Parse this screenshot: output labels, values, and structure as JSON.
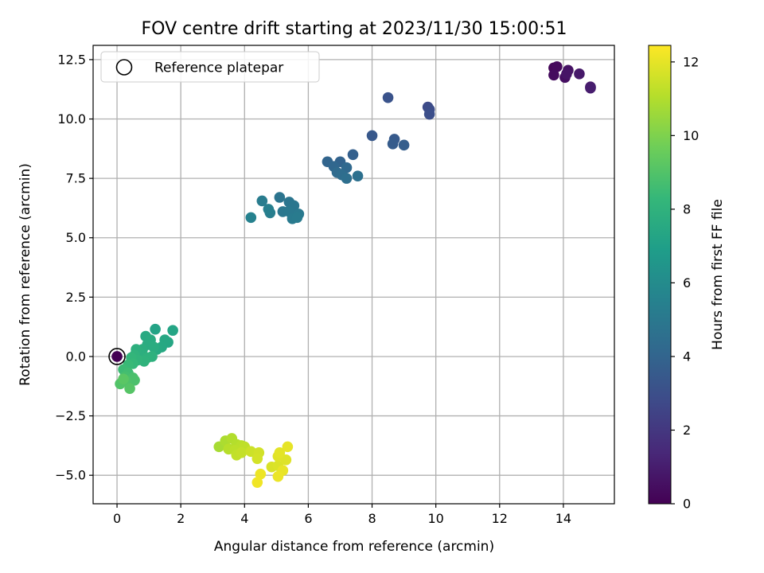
{
  "chart_data": {
    "type": "scatter",
    "title": "FOV centre drift starting at 2023/11/30 15:00:51",
    "xlabel": "Angular distance from reference (arcmin)",
    "ylabel": "Rotation from reference (arcmin)",
    "xlim": [
      -0.75,
      15.6
    ],
    "ylim": [
      -6.2,
      13.1
    ],
    "xticks": [
      "0",
      "2",
      "4",
      "6",
      "8",
      "10",
      "12",
      "14"
    ],
    "yticks": [
      "−5.0",
      "−2.5",
      "0.0",
      "2.5",
      "5.0",
      "7.5",
      "10.0",
      "12.5"
    ],
    "grid": true,
    "legend": {
      "placement": "top-left",
      "label": "Reference platepar"
    },
    "reference_point": {
      "x": 0,
      "y": 0
    },
    "colorbar": {
      "label": "Hours from first FF file",
      "colormap": "viridis",
      "range": [
        0,
        12.45
      ],
      "ticks": [
        "0",
        "2",
        "4",
        "6",
        "8",
        "10",
        "12"
      ]
    },
    "colormap_stops": [
      "#440154",
      "#482878",
      "#3e4a89",
      "#31688e",
      "#26828e",
      "#1f9e89",
      "#35b779",
      "#6ece58",
      "#b5de2b",
      "#fde725"
    ],
    "points": [
      {
        "x": 13.7,
        "y": 12.15,
        "h": 0.2
      },
      {
        "x": 13.8,
        "y": 12.2,
        "h": 0.3
      },
      {
        "x": 13.7,
        "y": 11.85,
        "h": 0.4
      },
      {
        "x": 14.05,
        "y": 11.75,
        "h": 0.5
      },
      {
        "x": 14.15,
        "y": 12.05,
        "h": 0.6
      },
      {
        "x": 14.1,
        "y": 11.9,
        "h": 0.7
      },
      {
        "x": 14.5,
        "y": 11.9,
        "h": 0.8
      },
      {
        "x": 14.85,
        "y": 11.35,
        "h": 0.9
      },
      {
        "x": 14.85,
        "y": 11.3,
        "h": 1.0
      },
      {
        "x": 9.75,
        "y": 10.5,
        "h": 2.8
      },
      {
        "x": 9.8,
        "y": 10.4,
        "h": 2.9
      },
      {
        "x": 9.8,
        "y": 10.2,
        "h": 3.0
      },
      {
        "x": 8.5,
        "y": 10.9,
        "h": 3.2
      },
      {
        "x": 8.0,
        "y": 9.3,
        "h": 3.4
      },
      {
        "x": 8.7,
        "y": 9.15,
        "h": 3.5
      },
      {
        "x": 8.65,
        "y": 8.95,
        "h": 3.6
      },
      {
        "x": 9.0,
        "y": 8.9,
        "h": 3.7
      },
      {
        "x": 7.4,
        "y": 8.5,
        "h": 3.8
      },
      {
        "x": 7.0,
        "y": 8.2,
        "h": 3.9
      },
      {
        "x": 6.6,
        "y": 8.2,
        "h": 4.0
      },
      {
        "x": 6.8,
        "y": 8.0,
        "h": 4.1
      },
      {
        "x": 7.2,
        "y": 7.95,
        "h": 4.2
      },
      {
        "x": 6.9,
        "y": 7.75,
        "h": 4.3
      },
      {
        "x": 7.05,
        "y": 7.65,
        "h": 4.4
      },
      {
        "x": 7.2,
        "y": 7.5,
        "h": 4.5
      },
      {
        "x": 7.55,
        "y": 7.6,
        "h": 4.6
      },
      {
        "x": 5.45,
        "y": 6.2,
        "h": 4.7
      },
      {
        "x": 5.1,
        "y": 6.7,
        "h": 4.8
      },
      {
        "x": 5.4,
        "y": 6.5,
        "h": 4.85
      },
      {
        "x": 5.55,
        "y": 6.35,
        "h": 4.9
      },
      {
        "x": 5.2,
        "y": 6.1,
        "h": 4.95
      },
      {
        "x": 5.4,
        "y": 6.1,
        "h": 5.0
      },
      {
        "x": 5.7,
        "y": 6.0,
        "h": 5.05
      },
      {
        "x": 5.5,
        "y": 5.8,
        "h": 5.1
      },
      {
        "x": 5.65,
        "y": 5.85,
        "h": 5.15
      },
      {
        "x": 4.55,
        "y": 6.55,
        "h": 5.2
      },
      {
        "x": 4.8,
        "y": 6.05,
        "h": 5.3
      },
      {
        "x": 4.75,
        "y": 6.2,
        "h": 5.35
      },
      {
        "x": 4.2,
        "y": 5.85,
        "h": 5.5
      },
      {
        "x": 1.2,
        "y": 1.15,
        "h": 7.2
      },
      {
        "x": 1.75,
        "y": 1.1,
        "h": 7.3
      },
      {
        "x": 1.6,
        "y": 0.6,
        "h": 7.35
      },
      {
        "x": 1.5,
        "y": 0.7,
        "h": 7.4
      },
      {
        "x": 1.4,
        "y": 0.4,
        "h": 7.45
      },
      {
        "x": 1.25,
        "y": 0.3,
        "h": 7.5
      },
      {
        "x": 0.9,
        "y": 0.85,
        "h": 7.55
      },
      {
        "x": 1.05,
        "y": 0.7,
        "h": 7.6
      },
      {
        "x": 0.95,
        "y": 0.5,
        "h": 7.65
      },
      {
        "x": 1.15,
        "y": 0.4,
        "h": 7.7
      },
      {
        "x": 0.8,
        "y": 0.3,
        "h": 7.75
      },
      {
        "x": 0.7,
        "y": 0.2,
        "h": 7.8
      },
      {
        "x": 0.6,
        "y": 0.3,
        "h": 7.85
      },
      {
        "x": 1.1,
        "y": 0.0,
        "h": 7.9
      },
      {
        "x": 0.95,
        "y": -0.05,
        "h": 7.95
      },
      {
        "x": 0.85,
        "y": -0.2,
        "h": 8.0
      },
      {
        "x": 0.55,
        "y": 0.05,
        "h": 8.05
      },
      {
        "x": 0.65,
        "y": -0.15,
        "h": 8.1
      },
      {
        "x": 0.45,
        "y": -0.05,
        "h": 8.2
      },
      {
        "x": 0.5,
        "y": -0.3,
        "h": 8.3
      },
      {
        "x": 0.35,
        "y": -0.35,
        "h": 8.4
      },
      {
        "x": 0.2,
        "y": -0.55,
        "h": 8.5
      },
      {
        "x": 0.35,
        "y": -0.7,
        "h": 8.6
      },
      {
        "x": 0.25,
        "y": -0.85,
        "h": 8.7
      },
      {
        "x": 0.5,
        "y": -0.9,
        "h": 8.8
      },
      {
        "x": 0.55,
        "y": -1.0,
        "h": 8.85
      },
      {
        "x": 0.3,
        "y": -1.05,
        "h": 8.9
      },
      {
        "x": 0.1,
        "y": -1.15,
        "h": 9.0
      },
      {
        "x": 0.4,
        "y": -1.35,
        "h": 9.1
      },
      {
        "x": 0.2,
        "y": -0.95,
        "h": 9.2
      },
      {
        "x": 3.2,
        "y": -3.8,
        "h": 10.8
      },
      {
        "x": 3.4,
        "y": -3.55,
        "h": 10.9
      },
      {
        "x": 3.6,
        "y": -3.45,
        "h": 11.0
      },
      {
        "x": 3.75,
        "y": -3.7,
        "h": 11.05
      },
      {
        "x": 3.5,
        "y": -3.9,
        "h": 11.1
      },
      {
        "x": 3.9,
        "y": -3.75,
        "h": 11.15
      },
      {
        "x": 3.7,
        "y": -3.95,
        "h": 11.2
      },
      {
        "x": 4.0,
        "y": -3.8,
        "h": 11.25
      },
      {
        "x": 3.75,
        "y": -4.15,
        "h": 11.3
      },
      {
        "x": 3.9,
        "y": -4.05,
        "h": 11.35
      },
      {
        "x": 4.2,
        "y": -4.0,
        "h": 11.5
      },
      {
        "x": 4.45,
        "y": -4.05,
        "h": 11.6
      },
      {
        "x": 4.4,
        "y": -4.3,
        "h": 11.65
      },
      {
        "x": 4.85,
        "y": -4.65,
        "h": 11.75
      },
      {
        "x": 5.05,
        "y": -4.6,
        "h": 11.8
      },
      {
        "x": 5.3,
        "y": -4.35,
        "h": 11.85
      },
      {
        "x": 5.05,
        "y": -4.2,
        "h": 11.9
      },
      {
        "x": 5.1,
        "y": -4.05,
        "h": 11.95
      },
      {
        "x": 5.35,
        "y": -3.8,
        "h": 12.0
      },
      {
        "x": 5.2,
        "y": -4.8,
        "h": 12.05
      },
      {
        "x": 5.05,
        "y": -5.05,
        "h": 12.1
      },
      {
        "x": 4.5,
        "y": -4.95,
        "h": 12.15
      },
      {
        "x": 4.4,
        "y": -5.3,
        "h": 12.2
      }
    ]
  }
}
